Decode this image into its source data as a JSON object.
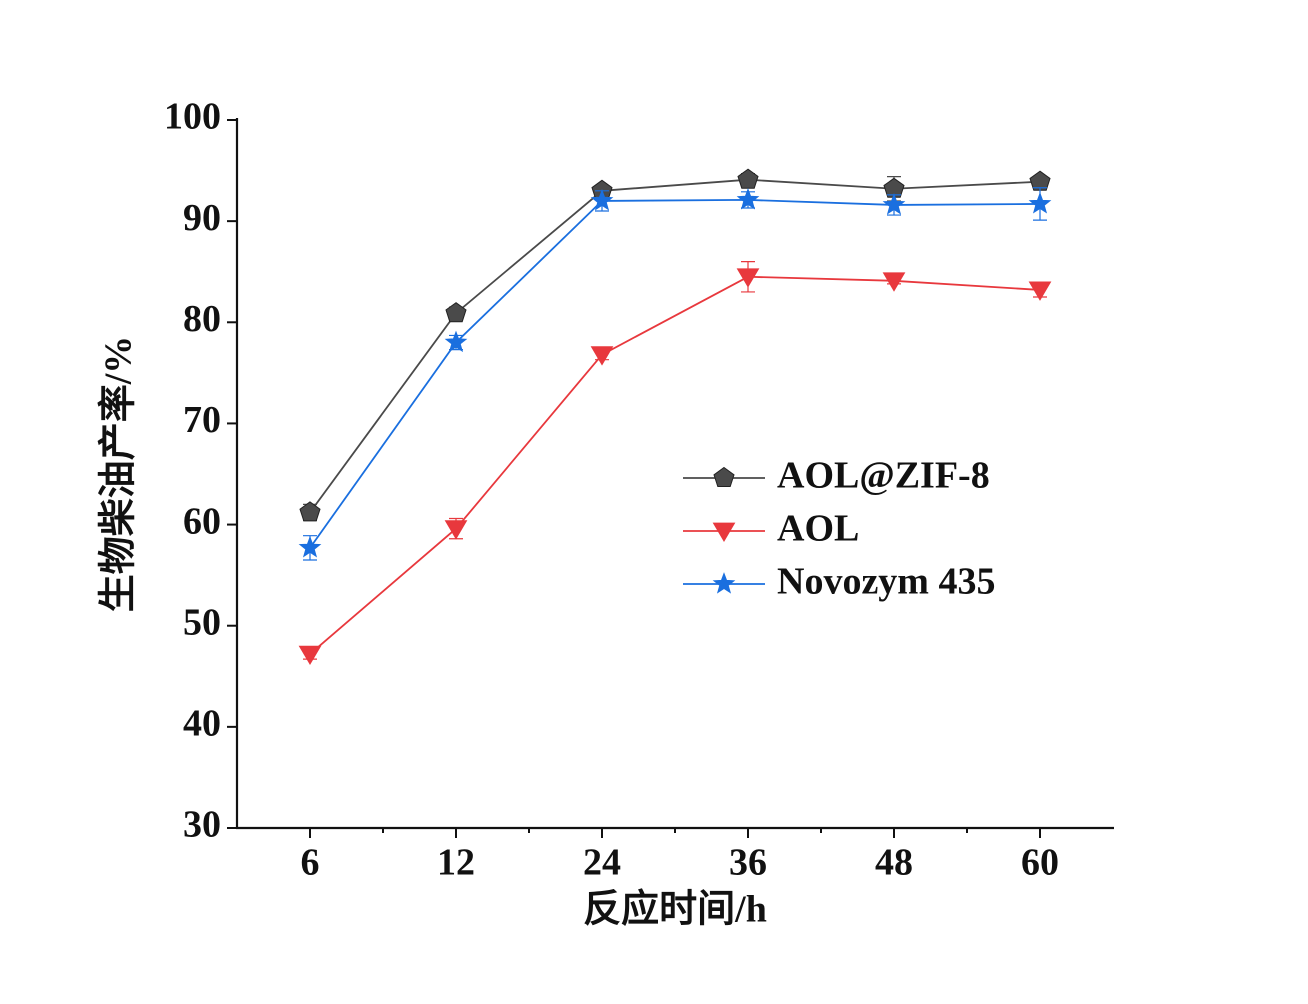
{
  "chart_data": {
    "type": "line",
    "x_label": "反应时间/h",
    "y_label": "生物柴油产率/%",
    "categories": [
      "6",
      "12",
      "24",
      "36",
      "48",
      "60"
    ],
    "ylim": [
      30,
      100
    ],
    "yticks": [
      30,
      40,
      50,
      60,
      70,
      80,
      90,
      100
    ],
    "legend": "center-right",
    "series": [
      {
        "name": "AOL@ZIF-8",
        "color": "#4a4a4a",
        "marker": "pentagon",
        "values": [
          61.2,
          80.9,
          93.0,
          94.1,
          93.2,
          93.9
        ],
        "errors": [
          0.8,
          0.6,
          0.5,
          0.6,
          1.2,
          0.5
        ]
      },
      {
        "name": "AOL",
        "color": "#e8383d",
        "marker": "triangle-down",
        "values": [
          47.2,
          59.6,
          76.8,
          84.5,
          84.1,
          83.2
        ],
        "errors": [
          0.5,
          1.0,
          0.5,
          1.5,
          0.3,
          0.7
        ]
      },
      {
        "name": "Novozym 435",
        "color": "#1a6fdf",
        "marker": "star",
        "values": [
          57.7,
          78.0,
          92.0,
          92.1,
          91.6,
          91.7
        ],
        "errors": [
          1.2,
          0.7,
          1.0,
          0.8,
          1.0,
          1.6
        ]
      }
    ]
  }
}
